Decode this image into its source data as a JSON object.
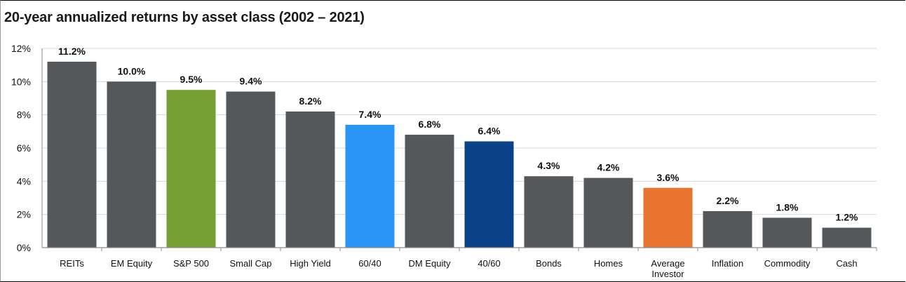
{
  "chart_data": {
    "type": "bar",
    "title": "20-year annualized returns by asset class (2002 – 2021)",
    "xlabel": "",
    "ylabel": "",
    "ylim": [
      0,
      12
    ],
    "yticks": [
      0,
      2,
      4,
      6,
      8,
      10,
      12
    ],
    "ytick_labels": [
      "0%",
      "2%",
      "4%",
      "6%",
      "8%",
      "10%",
      "12%"
    ],
    "grid": true,
    "categories": [
      "REITs",
      "EM Equity",
      "S&P 500",
      "Small Cap",
      "High Yield",
      "60/40",
      "DM Equity",
      "40/60",
      "Bonds",
      "Homes",
      "Average Investor",
      "Inflation",
      "Commodity",
      "Cash"
    ],
    "category_lines": [
      [
        "REITs"
      ],
      [
        "EM Equity"
      ],
      [
        "S&P 500"
      ],
      [
        "Small Cap"
      ],
      [
        "High Yield"
      ],
      [
        "60/40"
      ],
      [
        "DM Equity"
      ],
      [
        "40/60"
      ],
      [
        "Bonds"
      ],
      [
        "Homes"
      ],
      [
        "Average",
        "Investor"
      ],
      [
        "Inflation"
      ],
      [
        "Commodity"
      ],
      [
        "Cash"
      ]
    ],
    "values": [
      11.2,
      10.0,
      9.5,
      9.4,
      8.2,
      7.4,
      6.8,
      6.4,
      4.3,
      4.2,
      3.6,
      2.2,
      1.8,
      1.2
    ],
    "value_labels": [
      "11.2%",
      "10.0%",
      "9.5%",
      "9.4%",
      "8.2%",
      "7.4%",
      "6.8%",
      "6.4%",
      "4.3%",
      "4.2%",
      "3.6%",
      "2.2%",
      "1.8%",
      "1.2%"
    ],
    "colors": [
      "#54585a",
      "#54585a",
      "#76a132",
      "#54585a",
      "#54585a",
      "#2b95f5",
      "#54585a",
      "#0b4187",
      "#54585a",
      "#54585a",
      "#e8742f",
      "#54585a",
      "#54585a",
      "#54585a"
    ]
  }
}
